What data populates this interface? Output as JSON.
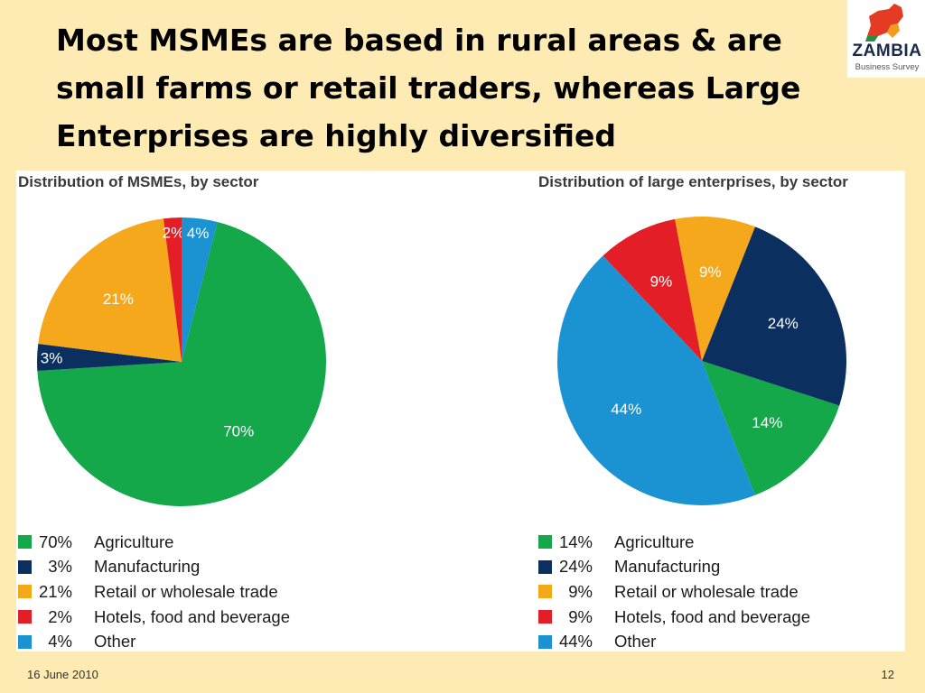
{
  "slide": {
    "title": "Most MSMEs are based in rural areas & are small farms or retail traders, whereas Large Enterprises are highly diversified",
    "date": "16 June 2010",
    "page_number": "12"
  },
  "logo": {
    "word": "ZAMBIA",
    "subtitle": "Business Survey",
    "colors": [
      "#e33b24",
      "#f29b1d",
      "#2a8c3c"
    ]
  },
  "chart_data": [
    {
      "type": "pie",
      "title": "Distribution of MSMEs, by sector",
      "slices": [
        {
          "label": "Agriculture",
          "value": 70,
          "value_label": "70%",
          "color": "#14a84a"
        },
        {
          "label": "Manufacturing",
          "value": 3,
          "value_label": "3%",
          "color": "#0b2f5e"
        },
        {
          "label": "Retail or wholesale trade",
          "value": 21,
          "value_label": "21%",
          "color": "#f6a81c"
        },
        {
          "label": "Hotels, food and beverage",
          "value": 2,
          "value_label": "2%",
          "color": "#e31e26"
        },
        {
          "label": "Other",
          "value": 4,
          "value_label": "4%",
          "color": "#1b93d2"
        }
      ],
      "legend_placement": "bottom"
    },
    {
      "type": "pie",
      "title": "Distribution of large enterprises, by sector",
      "slices": [
        {
          "label": "Agriculture",
          "value": 14,
          "value_label": "14%",
          "color": "#14a84a"
        },
        {
          "label": "Manufacturing",
          "value": 24,
          "value_label": "24%",
          "color": "#0b2f5e"
        },
        {
          "label": "Retail or wholesale trade",
          "value": 9,
          "value_label": "9%",
          "color": "#f6a81c"
        },
        {
          "label": "Hotels, food and beverage",
          "value": 9,
          "value_label": "9%",
          "color": "#e31e26"
        },
        {
          "label": "Other",
          "value": 44,
          "value_label": "44%",
          "color": "#1b93d2"
        }
      ],
      "legend_placement": "bottom"
    }
  ]
}
